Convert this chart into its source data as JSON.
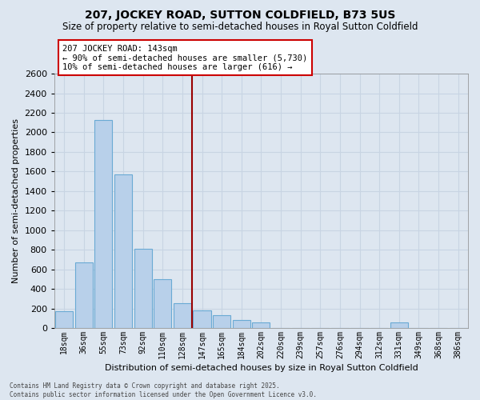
{
  "title": "207, JOCKEY ROAD, SUTTON COLDFIELD, B73 5US",
  "subtitle": "Size of property relative to semi-detached houses in Royal Sutton Coldfield",
  "xlabel": "Distribution of semi-detached houses by size in Royal Sutton Coldfield",
  "ylabel": "Number of semi-detached properties",
  "categories": [
    "18sqm",
    "36sqm",
    "55sqm",
    "73sqm",
    "92sqm",
    "110sqm",
    "128sqm",
    "147sqm",
    "165sqm",
    "184sqm",
    "202sqm",
    "220sqm",
    "239sqm",
    "257sqm",
    "276sqm",
    "294sqm",
    "312sqm",
    "331sqm",
    "349sqm",
    "368sqm",
    "386sqm"
  ],
  "values": [
    170,
    670,
    2130,
    1570,
    810,
    500,
    250,
    180,
    130,
    80,
    55,
    0,
    0,
    0,
    0,
    0,
    0,
    55,
    0,
    0,
    0
  ],
  "bar_color": "#b8d0ea",
  "bar_edge_color": "#6aaad4",
  "background_color": "#dde6f0",
  "grid_color": "#c8d4e3",
  "vline_color": "#990000",
  "annotation_title": "207 JOCKEY ROAD: 143sqm",
  "annotation_line1": "← 90% of semi-detached houses are smaller (5,730)",
  "annotation_line2": "10% of semi-detached houses are larger (616) →",
  "annotation_box_color": "white",
  "annotation_box_edge": "#cc0000",
  "footer1": "Contains HM Land Registry data © Crown copyright and database right 2025.",
  "footer2": "Contains public sector information licensed under the Open Government Licence v3.0.",
  "ylim": [
    0,
    2600
  ],
  "yticks": [
    0,
    200,
    400,
    600,
    800,
    1000,
    1200,
    1400,
    1600,
    1800,
    2000,
    2200,
    2400,
    2600
  ],
  "vline_pos": 6.5
}
